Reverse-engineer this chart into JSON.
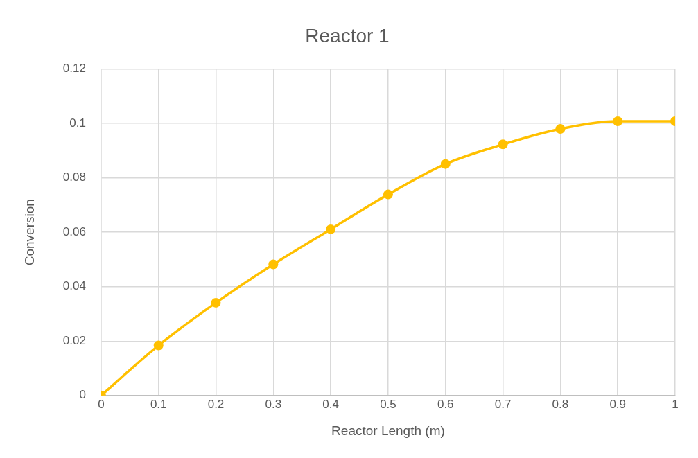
{
  "chart_data": {
    "type": "line",
    "title": "Reactor 1",
    "xlabel": "Reactor Length (m)",
    "ylabel": "Conversion",
    "x": [
      0,
      0.1,
      0.2,
      0.3,
      0.4,
      0.5,
      0.6,
      0.7,
      0.8,
      0.9,
      1
    ],
    "series": [
      {
        "color": "#ffc000",
        "values": [
          0,
          0.0184,
          0.0341,
          0.0482,
          0.0611,
          0.0739,
          0.0851,
          0.0923,
          0.098,
          0.1008,
          0.1008
        ]
      }
    ],
    "xlim": [
      0,
      1
    ],
    "xticks": [
      0,
      0.1,
      0.2,
      0.3,
      0.4,
      0.5,
      0.6,
      0.7,
      0.8,
      0.9,
      1
    ],
    "ylim": [
      0,
      0.12
    ],
    "yticks": [
      0,
      0.02,
      0.04,
      0.06,
      0.08,
      0.1,
      0.12
    ],
    "grid": true,
    "legend": false,
    "marker": "circle",
    "line_style": "solid"
  }
}
